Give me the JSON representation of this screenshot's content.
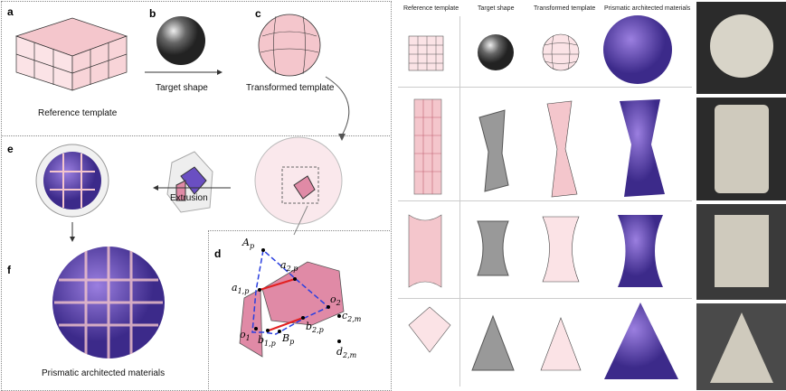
{
  "left_panel": {
    "panel_labels": [
      "a",
      "b",
      "c",
      "d",
      "e",
      "f"
    ],
    "captions": {
      "a": "Reference template",
      "b": "Target shape",
      "c": "Transformed template",
      "e_arrow": "Extrusion",
      "f": "Prismatic architected materials"
    },
    "math_labels": {
      "Ap": "A",
      "Ap_sub": "p",
      "a2p": "a",
      "a2p_sub": "2,p",
      "a1p": "a",
      "a1p_sub": "1,p",
      "o2": "o",
      "o2_sub": "2",
      "o1": "o",
      "o1_sub": "1",
      "b1p": "b",
      "b1p_sub": "1,p",
      "Bp": "B",
      "Bp_sub": "p",
      "b2p": "b",
      "b2p_sub": "2,p",
      "c2m": "c",
      "c2m_sub": "2,m",
      "d2m": "d",
      "d2m_sub": "2,m"
    }
  },
  "right_panel": {
    "headers": [
      "Reference template",
      "Target shape",
      "Transformed template",
      "Prismatic architected materials"
    ],
    "rows": [
      "sphere",
      "twisted prism",
      "hyperboloid",
      "cone"
    ]
  },
  "colors": {
    "pink": "#f4c6cc",
    "purple": "#6a4fc2",
    "grey": "#8a8a8a",
    "red": "#e32020",
    "blue": "#2a3fe0"
  }
}
